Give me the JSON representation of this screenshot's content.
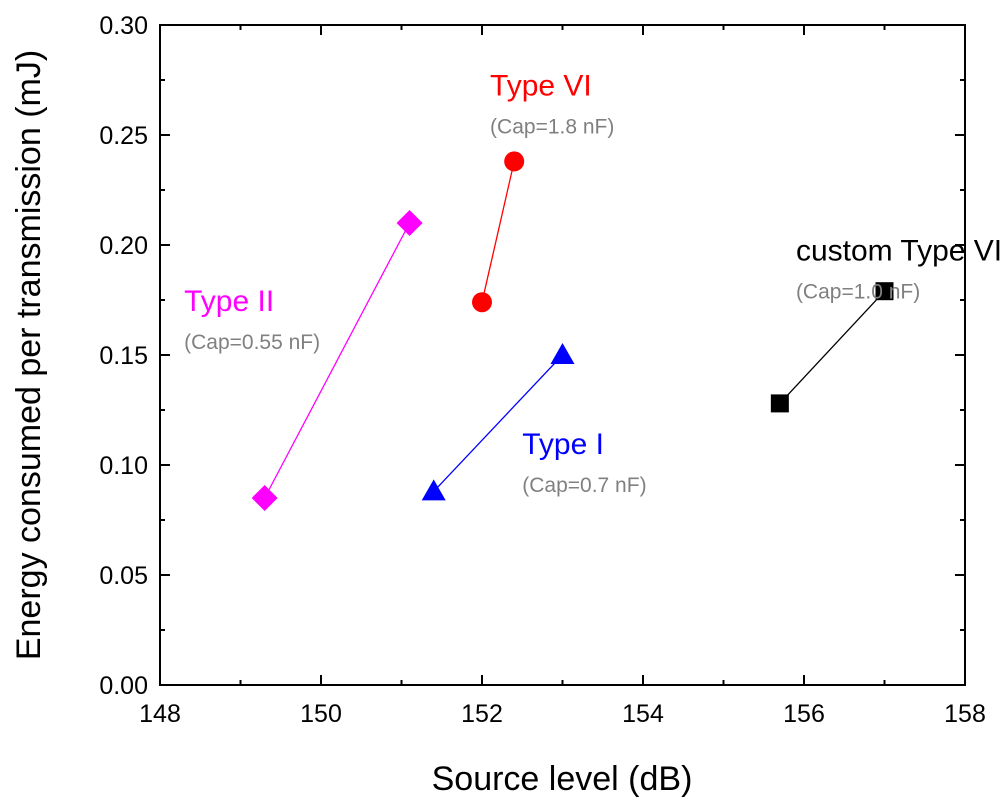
{
  "chart_data": {
    "type": "scatter",
    "title": "",
    "xlabel": "Source level (dB)",
    "ylabel": "Energy consumed per transmission (mJ)",
    "xlim": [
      148,
      158
    ],
    "ylim": [
      0,
      0.3
    ],
    "xticks": [
      "148",
      "150",
      "152",
      "154",
      "156",
      "158"
    ],
    "yticks": [
      "0.00",
      "0.05",
      "0.10",
      "0.15",
      "0.20",
      "0.25",
      "0.30"
    ],
    "grid": false,
    "legend": "none",
    "series": [
      {
        "name": "Type II",
        "subtitle": "(Cap=0.55 nF)",
        "color": "#ff00ff",
        "marker": "diamond",
        "x": [
          149.3,
          151.1
        ],
        "y": [
          0.085,
          0.21
        ],
        "label_anchor": [
          148.3,
          0.17
        ]
      },
      {
        "name": "Type VI",
        "subtitle": "(Cap=1.8 nF)",
        "color": "#ff0000",
        "marker": "circle",
        "x": [
          152.0,
          152.4
        ],
        "y": [
          0.174,
          0.238
        ],
        "label_anchor": [
          152.1,
          0.268
        ]
      },
      {
        "name": "Type I",
        "subtitle": "(Cap=0.7 nF)",
        "color": "#0000ff",
        "marker": "triangle",
        "x": [
          151.4,
          153.0
        ],
        "y": [
          0.088,
          0.15
        ],
        "label_anchor": [
          152.5,
          0.105
        ]
      },
      {
        "name": "custom Type VI",
        "subtitle": "(Cap=1.0 nF)",
        "color": "#000000",
        "marker": "square",
        "x": [
          155.7,
          157.0
        ],
        "y": [
          0.128,
          0.179
        ],
        "label_anchor": [
          155.9,
          0.193
        ]
      }
    ]
  },
  "colors": {
    "axis": "#000000",
    "subtitle": "#808080"
  }
}
